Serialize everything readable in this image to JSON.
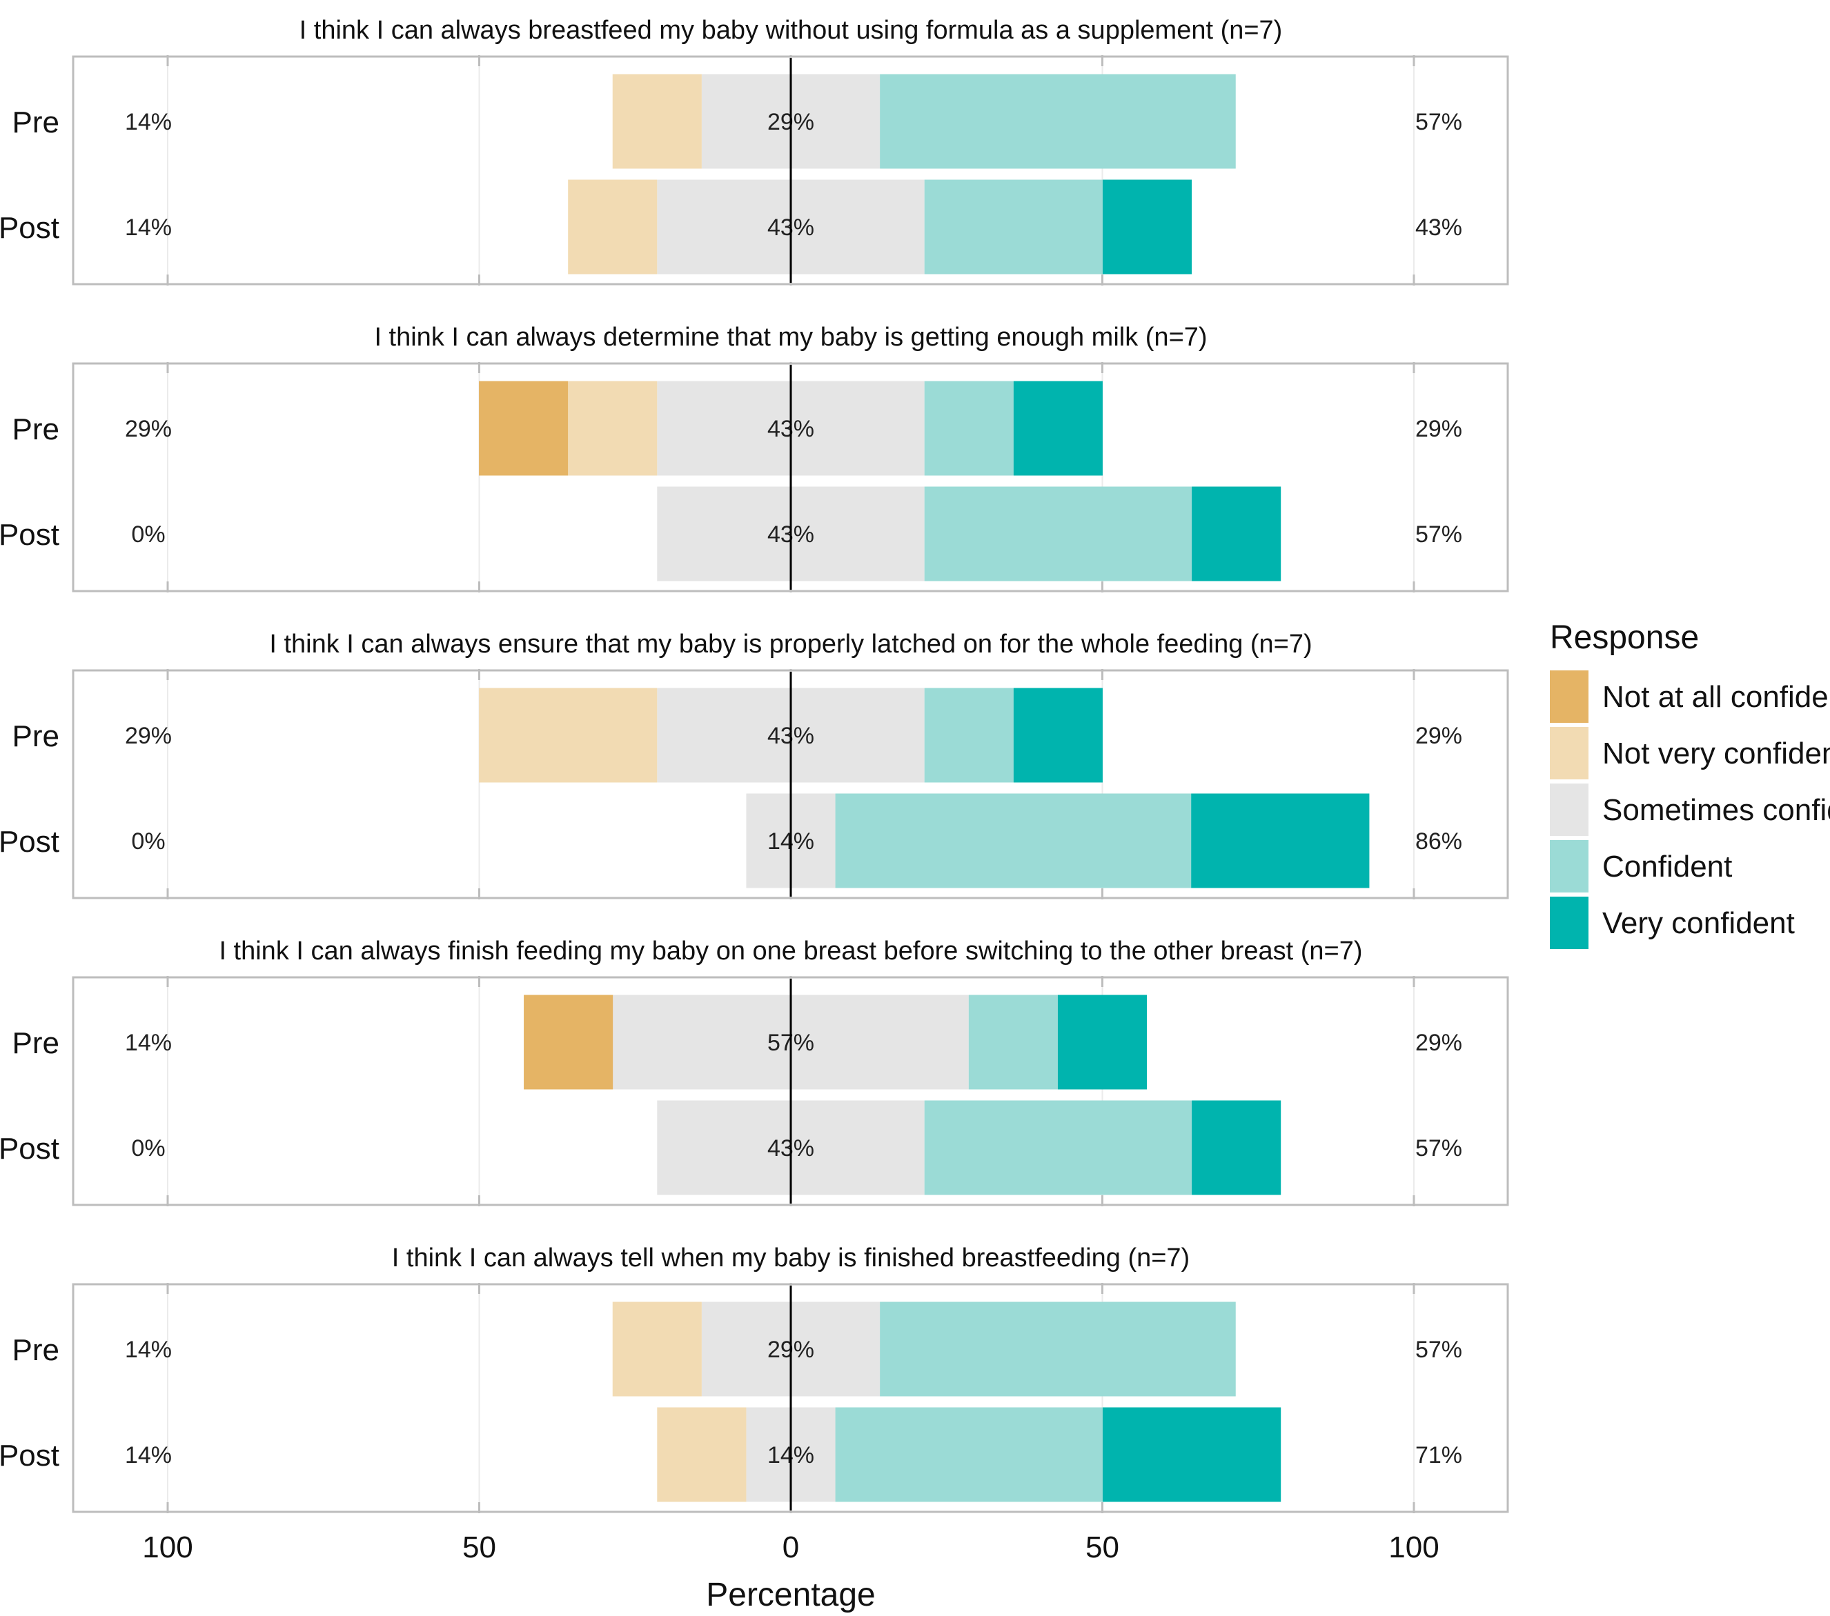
{
  "chart_data": {
    "type": "diverging-stacked-bar",
    "xlabel": "Percentage",
    "xlim": [
      -100,
      100
    ],
    "xticks": [
      -100,
      -50,
      0,
      50,
      100
    ],
    "xtick_labels": [
      "100",
      "50",
      "0",
      "50",
      "100"
    ],
    "grid": true,
    "legend": {
      "title": "Response",
      "placement": "right",
      "entries": [
        "Not at all confident",
        "Not very confident",
        "Sometimes confident",
        "Confident",
        "Very confident"
      ]
    },
    "colors": {
      "Not at all confident": "#E5B465",
      "Not very confident": "#F2DBB3",
      "Sometimes confident": "#E5E5E5",
      "Confident": "#9BDBD6",
      "Very confident": "#00B4AE"
    },
    "panels": [
      {
        "title": "I think I can always breastfeed my baby without using formula as a supplement (n=7)",
        "rows": [
          {
            "label": "Pre",
            "values": [
              0,
              14.3,
              28.6,
              57.1,
              0
            ],
            "left": "14%",
            "center": "29%",
            "right": "57%"
          },
          {
            "label": "Post",
            "values": [
              0,
              14.3,
              42.9,
              28.6,
              14.3
            ],
            "left": "14%",
            "center": "43%",
            "right": "43%"
          }
        ]
      },
      {
        "title": "I think I can always determine that my baby is getting enough milk (n=7)",
        "rows": [
          {
            "label": "Pre",
            "values": [
              14.3,
              14.3,
              42.9,
              14.3,
              14.3
            ],
            "left": "29%",
            "center": "43%",
            "right": "29%"
          },
          {
            "label": "Post",
            "values": [
              0,
              0,
              42.9,
              42.9,
              14.3
            ],
            "left": "0%",
            "center": "43%",
            "right": "57%"
          }
        ]
      },
      {
        "title": "I think I can always ensure that my baby is properly latched on for the whole feeding (n=7)",
        "rows": [
          {
            "label": "Pre",
            "values": [
              0,
              28.6,
              42.9,
              14.3,
              14.3
            ],
            "left": "29%",
            "center": "43%",
            "right": "29%"
          },
          {
            "label": "Post",
            "values": [
              0,
              0,
              14.3,
              57.1,
              28.6
            ],
            "left": "0%",
            "center": "14%",
            "right": "86%"
          }
        ]
      },
      {
        "title": "I think I can always finish feeding my baby on one breast before switching to the other breast (n=7)",
        "rows": [
          {
            "label": "Pre",
            "values": [
              14.3,
              0,
              57.1,
              14.3,
              14.3
            ],
            "left": "14%",
            "center": "57%",
            "right": "29%"
          },
          {
            "label": "Post",
            "values": [
              0,
              0,
              42.9,
              42.9,
              14.3
            ],
            "left": "0%",
            "center": "43%",
            "right": "57%"
          }
        ]
      },
      {
        "title": "I think I can always tell when my baby is finished breastfeeding (n=7)",
        "rows": [
          {
            "label": "Pre",
            "values": [
              0,
              14.3,
              28.6,
              57.1,
              0
            ],
            "left": "14%",
            "center": "29%",
            "right": "57%"
          },
          {
            "label": "Post",
            "values": [
              0,
              14.3,
              14.3,
              42.9,
              28.6
            ],
            "left": "14%",
            "center": "14%",
            "right": "71%"
          }
        ]
      }
    ]
  }
}
